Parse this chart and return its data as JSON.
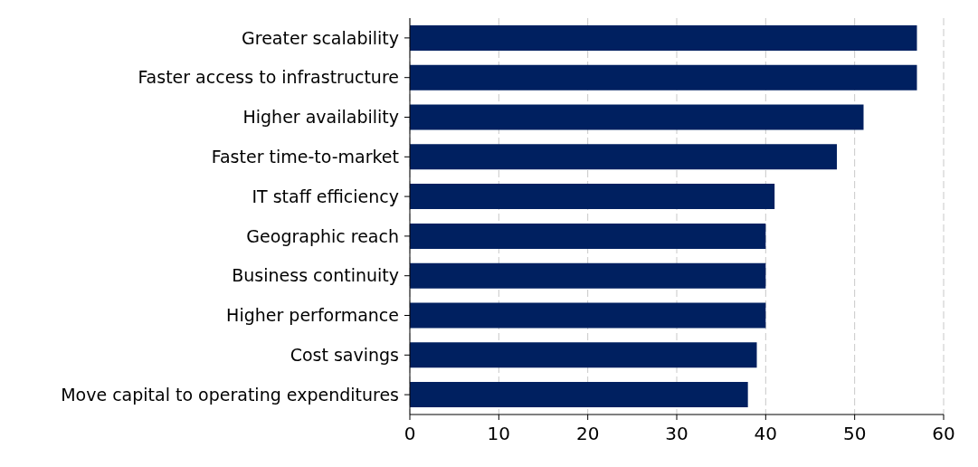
{
  "chart_data": {
    "type": "bar",
    "orientation": "horizontal",
    "categories": [
      "Greater scalability",
      "Faster access to infrastructure",
      "Higher availability",
      "Faster time-to-market",
      "IT staff efficiency",
      "Geographic reach",
      "Business continuity",
      "Higher performance",
      "Cost savings",
      "Move capital to operating expenditures"
    ],
    "values": [
      57,
      57,
      51,
      48,
      41,
      40,
      40,
      40,
      39,
      38
    ],
    "color": "#002060",
    "xlim": [
      0,
      60
    ],
    "xticks": [
      0,
      10,
      20,
      30,
      40,
      50,
      60
    ],
    "grid": "x"
  }
}
